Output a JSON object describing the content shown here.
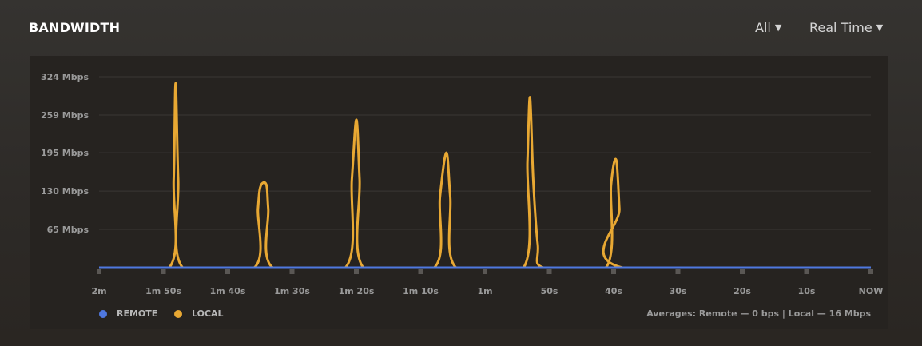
{
  "header": {
    "title": "BANDWIDTH",
    "filter_label": "All",
    "range_label": "Real Time"
  },
  "legend": [
    {
      "name": "REMOTE",
      "color": "#4f78e0"
    },
    {
      "name": "LOCAL",
      "color": "#e8a833"
    }
  ],
  "averages": "Averages: Remote — 0 bps | Local — 16 Mbps",
  "chart_data": {
    "type": "line",
    "xlabel": "",
    "ylabel": "",
    "x_unit": "seconds ago",
    "xlim": [
      120,
      0
    ],
    "ylim": [
      0,
      324
    ],
    "y_ticks": [
      {
        "v": 324,
        "label": "324 Mbps"
      },
      {
        "v": 259,
        "label": "259 Mbps"
      },
      {
        "v": 195,
        "label": "195 Mbps"
      },
      {
        "v": 130,
        "label": "130 Mbps"
      },
      {
        "v": 65,
        "label": "65 Mbps"
      }
    ],
    "x_ticks": [
      {
        "v": 120,
        "label": "2m"
      },
      {
        "v": 110,
        "label": "1m 50s"
      },
      {
        "v": 100,
        "label": "1m 40s"
      },
      {
        "v": 90,
        "label": "1m 30s"
      },
      {
        "v": 80,
        "label": "1m 20s"
      },
      {
        "v": 70,
        "label": "1m 10s"
      },
      {
        "v": 60,
        "label": "1m"
      },
      {
        "v": 50,
        "label": "50s"
      },
      {
        "v": 40,
        "label": "40s"
      },
      {
        "v": 30,
        "label": "30s"
      },
      {
        "v": 20,
        "label": "20s"
      },
      {
        "v": 10,
        "label": "10s"
      },
      {
        "v": 0,
        "label": "NOW"
      }
    ],
    "grid": true,
    "legend_position": "bottom-left",
    "series": [
      {
        "name": "REMOTE",
        "color": "#4f78e0",
        "points": [
          [
            120,
            0
          ],
          [
            0,
            0
          ]
        ]
      },
      {
        "name": "LOCAL",
        "color": "#e8a833",
        "points": [
          [
            120,
            0
          ],
          [
            109.1,
            0
          ],
          [
            108.4,
            150
          ],
          [
            108.1,
            313
          ],
          [
            107.7,
            150
          ],
          [
            107.0,
            0
          ],
          [
            95.9,
            0
          ],
          [
            95.3,
            100
          ],
          [
            94.9,
            138
          ],
          [
            94.0,
            141
          ],
          [
            93.7,
            100
          ],
          [
            93.0,
            0
          ],
          [
            81.7,
            0
          ],
          [
            80.7,
            150
          ],
          [
            80.0,
            251
          ],
          [
            79.5,
            150
          ],
          [
            78.9,
            0
          ],
          [
            67.9,
            0
          ],
          [
            67.0,
            120
          ],
          [
            66.0,
            195
          ],
          [
            65.4,
            120
          ],
          [
            64.5,
            0
          ],
          [
            54.0,
            0
          ],
          [
            53.4,
            180
          ],
          [
            53.0,
            289
          ],
          [
            52.5,
            150
          ],
          [
            51.8,
            40
          ],
          [
            50.9,
            0
          ],
          [
            41.2,
            0
          ],
          [
            40.4,
            140
          ],
          [
            39.6,
            183
          ],
          [
            39.1,
            100
          ],
          [
            38.6,
            0
          ],
          [
            0,
            0
          ]
        ]
      }
    ]
  }
}
